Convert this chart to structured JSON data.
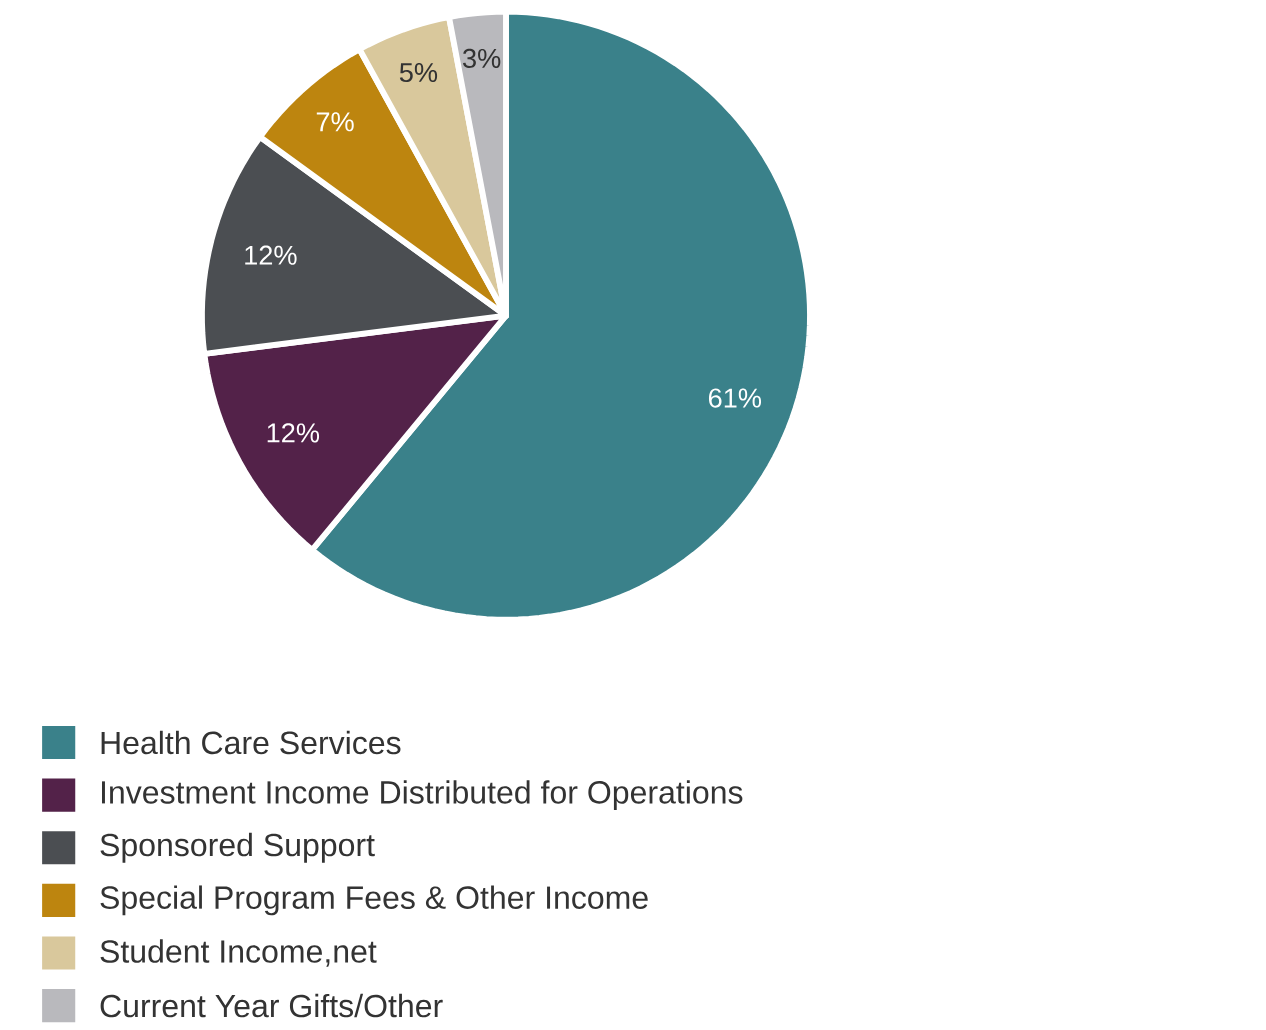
{
  "chart_data": {
    "type": "pie",
    "categories": [
      "Health Care Services",
      "Investment Income Distributed for Operations",
      "Sponsored Support",
      "Special Program Fees & Other Income",
      "Student Income,net",
      "Current Year Gifts/Other"
    ],
    "values": [
      61,
      12,
      12,
      7,
      5,
      3
    ],
    "value_labels": [
      "61%",
      "12%",
      "12%",
      "7%",
      "5%",
      "3%"
    ],
    "colors": [
      "#3a818a",
      "#532249",
      "#4b4e52",
      "#bd850f",
      "#d9c89c",
      "#b9b9bd"
    ],
    "legend": "bottom"
  }
}
